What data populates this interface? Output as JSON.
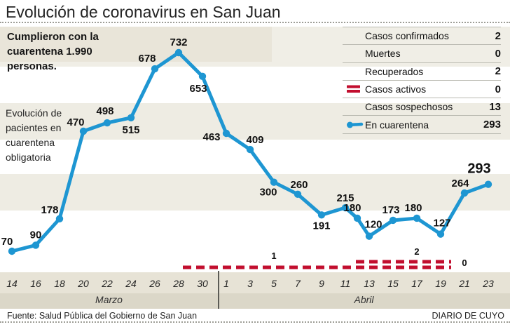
{
  "title": "Evolución de coronavirus en San Juan",
  "note": "Cumplieron con la cuarentena 1.990 personas.",
  "chart_description": "Evolución de pacientes en cuarentena obligatoria",
  "summary": {
    "rows": [
      {
        "label": "Casos confirmados",
        "value": "2",
        "icon": null
      },
      {
        "label": "Muertes",
        "value": "0",
        "icon": null
      },
      {
        "label": "Recuperados",
        "value": "2",
        "icon": null
      },
      {
        "label": "Casos activos",
        "value": "0",
        "icon": "active-dashes"
      },
      {
        "label": "Casos sospechosos",
        "value": "13",
        "icon": null
      },
      {
        "label": "En cuarentena",
        "value": "293",
        "icon": "quarantine-line"
      }
    ]
  },
  "colors": {
    "line_blue": "#1e96d2",
    "dash_red": "#c20e2e",
    "stripe_beige": "#eeece3",
    "axis_band": "#e7e3d6",
    "month_band": "#dbd7c8",
    "text_dark": "#111111"
  },
  "footer": {
    "source": "Fuente: Salud Pública del Gobierno de San Juan",
    "credit": "DIARIO DE CUYO"
  },
  "chart_data": {
    "type": "line",
    "title": "Evolución de pacientes en cuarentena obligatoria",
    "legend_position": "top-right",
    "grid": false,
    "ylim": [
      0,
      800
    ],
    "series": [
      {
        "name": "En cuarentena",
        "points": [
          {
            "date": "14-Mar",
            "value": 70,
            "dx": -7,
            "dy": -9
          },
          {
            "date": "16-Mar",
            "value": 90,
            "dx": 0,
            "dy": -10
          },
          {
            "date": "18-Mar",
            "value": 178,
            "dx": -14,
            "dy": -8
          },
          {
            "date": "20-Mar",
            "value": 470,
            "dx": -11,
            "dy": -8
          },
          {
            "date": "22-Mar",
            "value": 498,
            "dx": -3,
            "dy": -12
          },
          {
            "date": "24-Mar",
            "value": 515,
            "dx": 0,
            "dy": 22
          },
          {
            "date": "26-Mar",
            "value": 678,
            "dx": -11,
            "dy": -10
          },
          {
            "date": "28-Mar",
            "value": 732,
            "dx": 0,
            "dy": -10
          },
          {
            "date": "30-Mar",
            "value": 653,
            "dx": -6,
            "dy": 22
          },
          {
            "date": "1-Abr",
            "value": 463,
            "dx": -21,
            "dy": 10
          },
          {
            "date": "3-Abr",
            "value": 409,
            "dx": 7,
            "dy": -9
          },
          {
            "date": "5-Abr",
            "value": 300,
            "dx": -8,
            "dy": 19
          },
          {
            "date": "7-Abr",
            "value": 260,
            "dx": 2,
            "dy": -9
          },
          {
            "date": "9-Abr",
            "value": 191,
            "dx": 0,
            "dy": 20
          },
          {
            "date": "11-Abr",
            "value": 215,
            "dx": 0,
            "dy": -9
          },
          {
            "date": "12-Abr",
            "value": 180,
            "dx": -7,
            "dy": -10
          },
          {
            "date": "13-Abr",
            "value": 120,
            "dx": 6,
            "dy": -12
          },
          {
            "date": "15-Abr",
            "value": 173,
            "dx": -3,
            "dy": -10
          },
          {
            "date": "17-Abr",
            "value": 180,
            "dx": -5,
            "dy": -10
          },
          {
            "date": "19-Abr",
            "value": 127,
            "dx": 2,
            "dy": -11
          },
          {
            "date": "21-Abr",
            "value": 264,
            "dx": -6,
            "dy": -9
          },
          {
            "date": "23-Abr",
            "value": 293,
            "dx": -13,
            "dy": -16,
            "big": true
          }
        ]
      }
    ],
    "secondary_series": {
      "name": "Casos activos",
      "style": "dashed-red-band",
      "segments": [
        {
          "from": "28-Mar",
          "to": "11-Abr",
          "value": 1
        },
        {
          "from": "12-Abr",
          "to": "19-Abr",
          "value": 2
        },
        {
          "from": "20-Abr",
          "to": "23-Abr",
          "value": 0
        }
      ],
      "annotations": [
        {
          "text": "1",
          "anchor_date": "5-Abr"
        },
        {
          "text": "2",
          "anchor_date": "17-Abr"
        },
        {
          "text": "0",
          "anchor_date": "21-Abr"
        }
      ]
    },
    "x_axis": {
      "months": [
        {
          "name": "Marzo",
          "ticks": [
            14,
            16,
            18,
            20,
            22,
            24,
            26,
            28,
            30
          ]
        },
        {
          "name": "Abril",
          "ticks": [
            1,
            3,
            5,
            7,
            9,
            11,
            13,
            15,
            17,
            19,
            21,
            23
          ]
        }
      ]
    }
  }
}
